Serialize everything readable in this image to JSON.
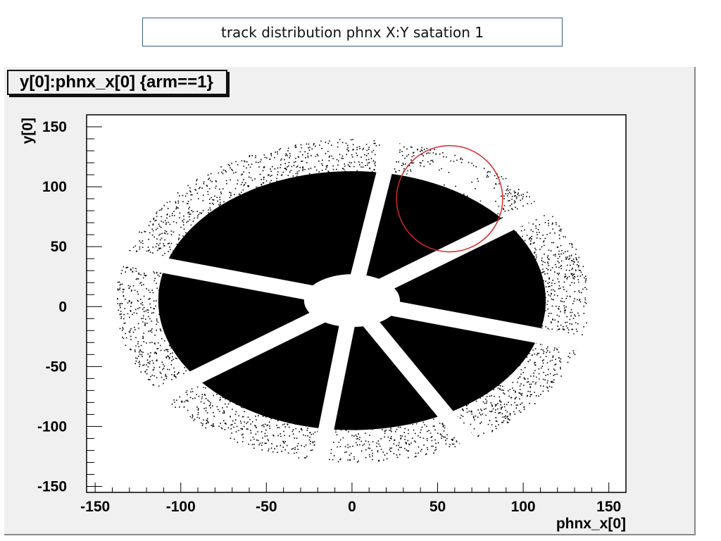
{
  "slide": {
    "title": "track distribution phnx X:Y satation 1"
  },
  "histogram": {
    "label": "y[0]:phnx_x[0] {arm==1}"
  },
  "highlight": {
    "shape": "circle",
    "color": "#d42a2a",
    "center": [
      57,
      90
    ],
    "radius_units": 31
  },
  "chart_data": {
    "type": "scatter",
    "xlabel": "phnx_x[0]",
    "ylabel": "y[0]",
    "xlim": [
      -155,
      160
    ],
    "ylim": [
      -155,
      160
    ],
    "xticks": [
      -150,
      -100,
      -50,
      0,
      50,
      100,
      150
    ],
    "yticks": [
      -150,
      -100,
      -50,
      0,
      50,
      100,
      150
    ],
    "xtick_labels": [
      "-150",
      "-100",
      "-50",
      "0",
      "50",
      "100",
      "150"
    ],
    "ytick_labels": [
      "-150",
      "-100",
      "-50",
      "0",
      "50",
      "100",
      "150"
    ],
    "grid": false,
    "marker_color": "#000000",
    "distribution": {
      "shape": "ellipse",
      "center": [
        0,
        5
      ],
      "outer_semi_axis_x": 138,
      "outer_semi_axis_y": 135,
      "inner_hole_semi_axis_x": 28,
      "inner_hole_semi_axis_y": 22,
      "octants": 8,
      "gap_angles_deg": [
        35,
        80,
        165,
        215,
        262,
        300,
        345
      ],
      "sparse_region": {
        "center": [
          57,
          90
        ],
        "radius": 31
      }
    }
  }
}
